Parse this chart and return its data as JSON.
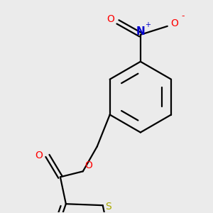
{
  "background_color": "#ebebeb",
  "bond_color": "#000000",
  "bond_width": 1.6,
  "figsize": [
    3.0,
    3.0
  ],
  "dpi": 100,
  "atoms": {
    "S": {
      "color": "#aaaa00",
      "size": 10
    },
    "O": {
      "color": "#ff0000",
      "size": 10
    },
    "N": {
      "color": "#0000cc",
      "size": 11
    }
  }
}
